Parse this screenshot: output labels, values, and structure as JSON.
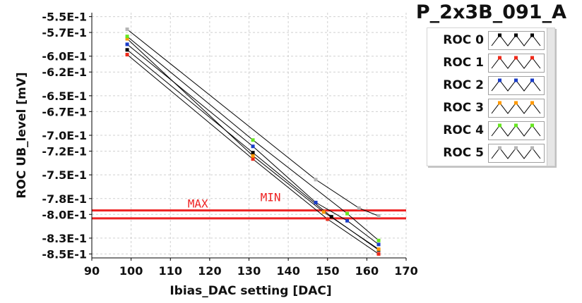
{
  "chart_data": {
    "type": "scatter",
    "title": "P_2x3B_091_A",
    "xlabel": "Ibias_DAC setting [DAC]",
    "ylabel": "ROC UB_level [mV]",
    "xlim": [
      90,
      170
    ],
    "ylim": [
      -0.855,
      -0.545
    ],
    "x_ticks": [
      90,
      100,
      110,
      120,
      130,
      140,
      150,
      160,
      170
    ],
    "y_ticks": [
      {
        "value": -0.55,
        "label": "-5.5E-1"
      },
      {
        "value": -0.57,
        "label": "-5.7E-1"
      },
      {
        "value": -0.6,
        "label": "-6.0E-1"
      },
      {
        "value": -0.62,
        "label": "-6.2E-1"
      },
      {
        "value": -0.65,
        "label": "-6.5E-1"
      },
      {
        "value": -0.67,
        "label": "-6.7E-1"
      },
      {
        "value": -0.7,
        "label": "-7.0E-1"
      },
      {
        "value": -0.72,
        "label": "-7.2E-1"
      },
      {
        "value": -0.75,
        "label": "-7.5E-1"
      },
      {
        "value": -0.78,
        "label": "-7.8E-1"
      },
      {
        "value": -0.8,
        "label": "-8.0E-1"
      },
      {
        "value": -0.83,
        "label": "-8.3E-1"
      },
      {
        "value": -0.85,
        "label": "-8.5E-1"
      }
    ],
    "grid": true,
    "legend_position": "right",
    "thresholds": [
      {
        "label": "MAX",
        "value": -0.795,
        "color": "#ee2222"
      },
      {
        "label": "MIN",
        "value": -0.805,
        "color": "#ee2222"
      }
    ],
    "series": [
      {
        "name": "ROC 0",
        "color": "#000000",
        "points": [
          [
            99,
            -0.592
          ],
          [
            131,
            -0.722
          ],
          [
            151,
            -0.803
          ],
          [
            163,
            -0.845
          ]
        ]
      },
      {
        "name": "ROC 1",
        "color": "#ee2a1a",
        "points": [
          [
            99,
            -0.598
          ],
          [
            131,
            -0.73
          ],
          [
            150,
            -0.806
          ],
          [
            163,
            -0.85
          ]
        ]
      },
      {
        "name": "ROC 2",
        "color": "#1a3cc8",
        "points": [
          [
            99,
            -0.585
          ],
          [
            131,
            -0.714
          ],
          [
            147,
            -0.785
          ],
          [
            155,
            -0.808
          ],
          [
            163,
            -0.838
          ]
        ]
      },
      {
        "name": "ROC 3",
        "color": "#ff9900",
        "points": [
          [
            99,
            -0.578
          ],
          [
            131,
            -0.726
          ],
          [
            149,
            -0.797
          ],
          [
            163,
            -0.844
          ]
        ]
      },
      {
        "name": "ROC 4",
        "color": "#66e620",
        "points": [
          [
            99,
            -0.575
          ],
          [
            131,
            -0.706
          ],
          [
            155,
            -0.799
          ],
          [
            163,
            -0.833
          ]
        ]
      },
      {
        "name": "ROC 5",
        "color": "#b4b4b4",
        "points": [
          [
            99,
            -0.566
          ],
          [
            147,
            -0.756
          ],
          [
            158,
            -0.792
          ],
          [
            163,
            -0.802
          ]
        ]
      }
    ]
  }
}
